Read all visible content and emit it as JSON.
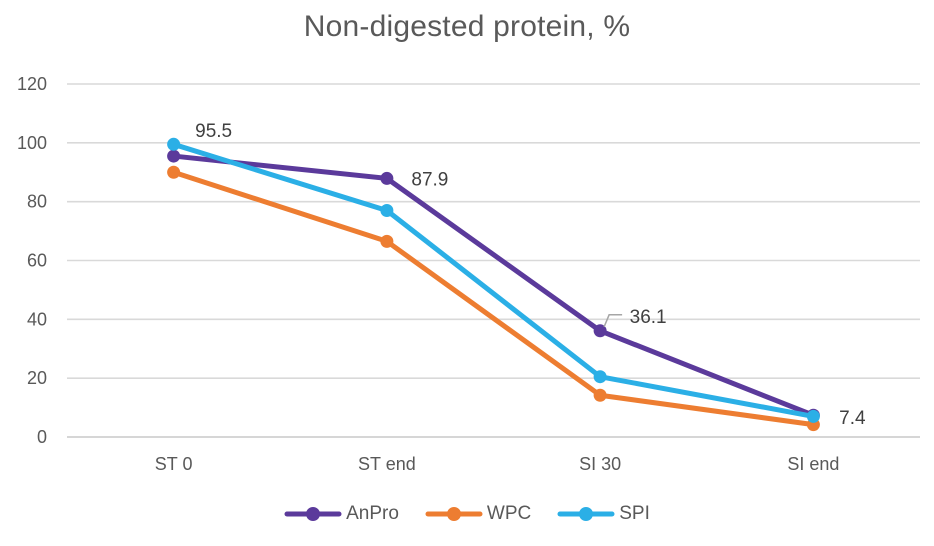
{
  "chart_data": {
    "type": "line",
    "title": "Non-digested protein, %",
    "categories": [
      "ST 0",
      "ST end",
      "SI 30",
      "SI end"
    ],
    "series": [
      {
        "name": "AnPro",
        "color": "#5B3A9B",
        "values": [
          95.5,
          87.9,
          36.1,
          7.4
        ],
        "point_labels": [
          "95.5",
          "87.9",
          "36.1",
          "7.4"
        ]
      },
      {
        "name": "WPC",
        "color": "#ED7D31",
        "values": [
          90,
          66.5,
          14.2,
          4.2
        ]
      },
      {
        "name": "SPI",
        "color": "#2BAFE6",
        "values": [
          99.5,
          77,
          20.5,
          7
        ]
      }
    ],
    "xlabel": "",
    "ylabel": "",
    "ylim": [
      0,
      120
    ],
    "yticks": [
      0,
      20,
      40,
      60,
      80,
      100,
      120
    ],
    "grid": true,
    "legend_position": "bottom",
    "colors": {
      "title_text": "#595959",
      "axis_text": "#595959",
      "data_label_text": "#404040",
      "gridline": "#D9D9D9",
      "baseline": "#C9C9C9",
      "leader_line": "#A6A6A6"
    }
  }
}
